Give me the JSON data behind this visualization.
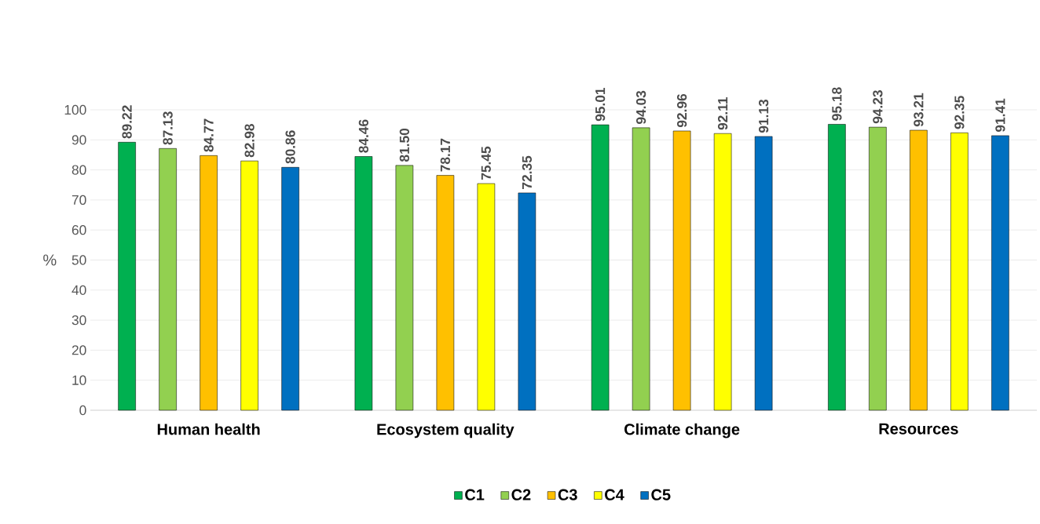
{
  "chart_data": {
    "type": "bar",
    "ylabel": "%",
    "categories": [
      "Human health",
      "Ecosystem quality",
      "Climate change",
      "Resources"
    ],
    "series": [
      {
        "name": "C1",
        "color": "#00b050",
        "values": [
          89.22,
          84.46,
          95.01,
          95.18
        ],
        "value_labels": [
          "89.22",
          "84.46",
          "95.01",
          "95.18"
        ]
      },
      {
        "name": "C2",
        "color": "#92d050",
        "values": [
          87.13,
          81.5,
          94.03,
          94.23
        ],
        "value_labels": [
          "87.13",
          "81.50",
          "94.03",
          "94.23"
        ]
      },
      {
        "name": "C3",
        "color": "#ffc000",
        "values": [
          84.77,
          78.17,
          92.96,
          93.21
        ],
        "value_labels": [
          "84.77",
          "78.17",
          "92.96",
          "93.21"
        ]
      },
      {
        "name": "C4",
        "color": "#ffff00",
        "values": [
          82.98,
          75.45,
          92.11,
          92.35
        ],
        "value_labels": [
          "82.98",
          "75.45",
          "92.11",
          "92.35"
        ]
      },
      {
        "name": "C5",
        "color": "#0070c0",
        "values": [
          80.86,
          72.35,
          91.13,
          91.41
        ],
        "value_labels": [
          "80.86",
          "72.35",
          "91.13",
          "91.41"
        ]
      }
    ],
    "ylim": [
      0,
      100
    ],
    "yticks": [
      0,
      10,
      20,
      30,
      40,
      50,
      60,
      70,
      80,
      90,
      100
    ],
    "grid": "y",
    "legend": "bottom"
  }
}
